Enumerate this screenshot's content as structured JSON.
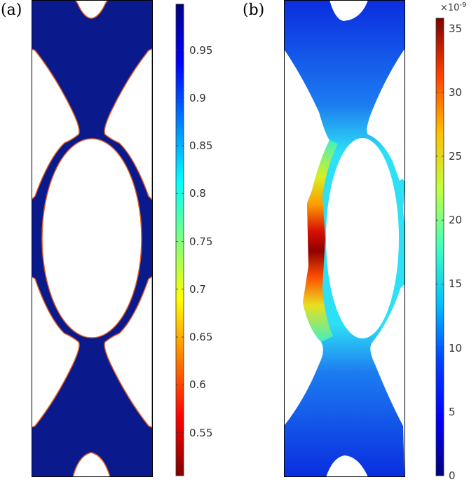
{
  "panels": [
    {
      "label": "(a)"
    },
    {
      "label": "(b)"
    }
  ],
  "colorbar_a": {
    "ticks": [
      "0.95",
      "0.9",
      "0.85",
      "0.8",
      "0.75",
      "0.7",
      "0.65",
      "0.6",
      "0.55"
    ],
    "tick_values": [
      0.95,
      0.9,
      0.85,
      0.8,
      0.75,
      0.7,
      0.65,
      0.6,
      0.55
    ],
    "range": [
      0.505,
      0.998
    ]
  },
  "colorbar_b": {
    "ticks": [
      "35",
      "30",
      "25",
      "20",
      "15",
      "10",
      "5",
      "0"
    ],
    "tick_values": [
      35,
      30,
      25,
      20,
      15,
      10,
      5,
      0
    ],
    "range": [
      0,
      35.8
    ],
    "multiplier_base": "×10",
    "multiplier_exp": "-9"
  },
  "colors": {
    "jet": [
      "#00007f",
      "#0000ff",
      "#007fff",
      "#00ffff",
      "#7fff7f",
      "#ffff00",
      "#ff7f00",
      "#ff0000",
      "#7f0000"
    ],
    "design_fill": "#0a1a8c",
    "void_fill": "#ffffff",
    "frame": "#000000"
  }
}
